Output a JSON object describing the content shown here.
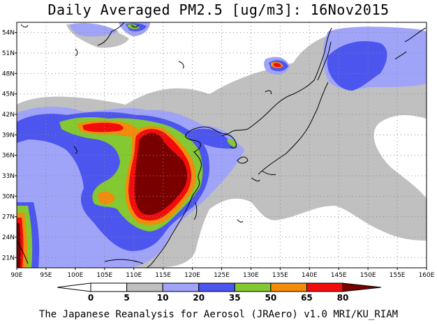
{
  "title": "Daily Averaged PM2.5 [ug/m3]: 16Nov2015",
  "footer": "The Japanese Reanalysis for Aerosol (JRAero) v1.0 MRI/KU_RIAM",
  "map": {
    "lon_range": [
      90,
      160
    ],
    "lat_range": [
      19.5,
      55.5
    ],
    "lon_ticks": [
      "90E",
      "95E",
      "100E",
      "105E",
      "110E",
      "115E",
      "120E",
      "125E",
      "130E",
      "135E",
      "140E",
      "145E",
      "150E",
      "155E",
      "160E"
    ],
    "lat_ticks": [
      "21N",
      "24N",
      "27N",
      "30N",
      "33N",
      "36N",
      "39N",
      "42N",
      "45N",
      "48N",
      "51N",
      "54N"
    ],
    "gridlines": true
  },
  "colorbar": {
    "labels": [
      "0",
      "5",
      "10",
      "20",
      "35",
      "50",
      "65",
      "80"
    ],
    "colors": [
      "#ffffff",
      "#c0c0c0",
      "#a0a4f8",
      "#4c55ee",
      "#84c832",
      "#f28c0a",
      "#f20c0c",
      "#7a0000"
    ]
  },
  "regions": [
    {
      "level": "5-10",
      "color": "#c0c0c0"
    },
    {
      "level": "10-20",
      "color": "#a0a4f8"
    },
    {
      "level": "20-35",
      "color": "#4c55ee"
    },
    {
      "level": "35-50",
      "color": "#84c832"
    },
    {
      "level": "50-65",
      "color": "#f28c0a"
    },
    {
      "level": "65-80",
      "color": "#f20c0c"
    },
    {
      "level": "80+",
      "color": "#7a0000"
    }
  ]
}
